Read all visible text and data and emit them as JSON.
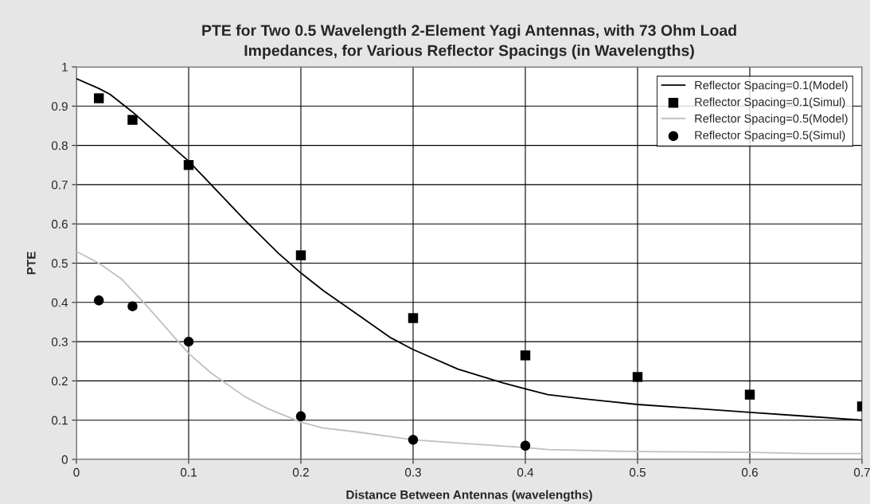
{
  "chart_data": {
    "type": "line",
    "title": "PTE for Two 0.5 Wavelength 2-Element Yagi Antennas, with 73 Ohm Load\nImpedances, for Various Reflector Spacings (in Wavelengths)",
    "xlabel": "Distance Between Antennas (wavelengths)",
    "ylabel": "PTE",
    "series": [
      {
        "name": "Reflector Spacing=0.1(Model)",
        "color": "#000000",
        "marker": "none",
        "x": [
          0,
          0.02,
          0.03,
          0.05,
          0.07,
          0.1,
          0.12,
          0.15,
          0.18,
          0.2,
          0.22,
          0.25,
          0.28,
          0.3,
          0.34,
          0.38,
          0.4,
          0.42,
          0.45,
          0.5,
          0.55,
          0.6,
          0.65,
          0.7
        ],
        "values": [
          0.97,
          0.945,
          0.93,
          0.885,
          0.835,
          0.76,
          0.7,
          0.61,
          0.525,
          0.475,
          0.43,
          0.37,
          0.31,
          0.28,
          0.23,
          0.195,
          0.18,
          0.165,
          0.155,
          0.14,
          0.13,
          0.12,
          0.11,
          0.1
        ]
      },
      {
        "name": "Reflector Spacing=0.1(Simul)",
        "type": "scatter",
        "color": "#000000",
        "marker": "square",
        "x": [
          0.02,
          0.05,
          0.1,
          0.2,
          0.3,
          0.4,
          0.5,
          0.6,
          0.7
        ],
        "values": [
          0.92,
          0.865,
          0.75,
          0.52,
          0.36,
          0.265,
          0.21,
          0.165,
          0.135
        ]
      },
      {
        "name": "Reflector Spacing=0.5(Model)",
        "color": "#c0c0c0",
        "marker": "none",
        "x": [
          0,
          0.02,
          0.04,
          0.06,
          0.08,
          0.1,
          0.12,
          0.15,
          0.17,
          0.2,
          0.22,
          0.25,
          0.3,
          0.35,
          0.4,
          0.42,
          0.5,
          0.6,
          0.65,
          0.7
        ],
        "values": [
          0.53,
          0.5,
          0.46,
          0.4,
          0.335,
          0.27,
          0.22,
          0.16,
          0.13,
          0.095,
          0.08,
          0.07,
          0.05,
          0.04,
          0.03,
          0.025,
          0.02,
          0.018,
          0.015,
          0.015
        ]
      },
      {
        "name": "Reflector Spacing=0.5(Simul)",
        "type": "scatter",
        "color": "#000000",
        "marker": "circle",
        "x": [
          0.02,
          0.05,
          0.1,
          0.2,
          0.3,
          0.4
        ],
        "values": [
          0.405,
          0.39,
          0.3,
          0.11,
          0.05,
          0.035
        ]
      }
    ],
    "xlim": [
      0,
      0.7
    ],
    "xticks": [
      0,
      0.1,
      0.2,
      0.3,
      0.4,
      0.5,
      0.6,
      0.7
    ],
    "ylim": [
      0,
      1
    ],
    "yticks": [
      0,
      0.1,
      0.2,
      0.3,
      0.4,
      0.5,
      0.6,
      0.7,
      0.8,
      0.9,
      1
    ],
    "grid": true,
    "legend": "top right"
  }
}
